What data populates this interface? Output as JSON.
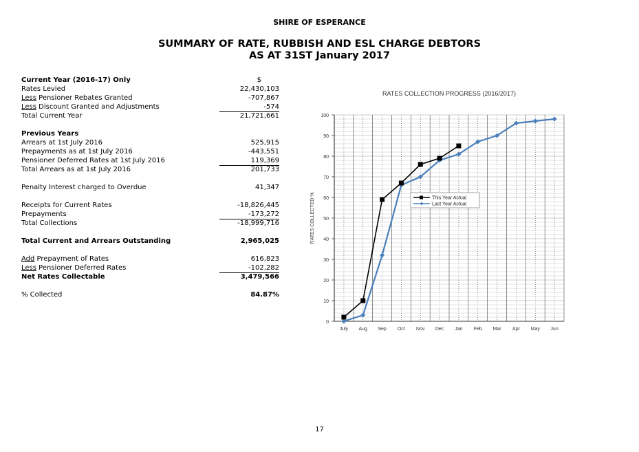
{
  "header": {
    "org": "SHIRE OF ESPERANCE",
    "title_line1": "SUMMARY OF RATE, RUBBISH AND ESL CHARGE DEBTORS",
    "title_line2": "AS AT 31ST January 2017"
  },
  "table": {
    "current_heading": "Current Year (2016-17) Only",
    "currency_symbol": "$",
    "rates_levied": {
      "label": "Rates Levied",
      "value": "22,430,103"
    },
    "pensioner_rebates": {
      "prefix": "Less",
      "label": " Pensioner Rebates Granted",
      "value": "-707,867"
    },
    "discount": {
      "prefix": "Less",
      "label": " Discount Granted and Adjustments",
      "value": "-574"
    },
    "total_current": {
      "label": "Total Current Year",
      "value": "21,721,661"
    },
    "previous_heading": "Previous Years",
    "arrears": {
      "label": "Arrears at 1st July 2016",
      "value": "525,915"
    },
    "prepayments_july": {
      "label": "Prepayments as at 1st July 2016",
      "value": "-443,551"
    },
    "pensioner_deferred": {
      "label": "Pensioner Deferred Rates at 1st July 2016",
      "value": "119,369"
    },
    "total_arrears": {
      "label": "Total Arrears as at 1st July 2016",
      "value": "201,733"
    },
    "penalty": {
      "label": "Penalty Interest charged to Overdue",
      "value": "41,347"
    },
    "receipts": {
      "label": "Receipts for Current Rates",
      "value": "-18,826,445"
    },
    "prepayments": {
      "label": "Prepayments",
      "value": "-173,272"
    },
    "total_collections": {
      "label": "Total Collections",
      "value": "-18,999,716"
    },
    "outstanding": {
      "label": "Total Current and Arrears Outstanding",
      "value": "2,965,025"
    },
    "add_prepayment": {
      "prefix": "Add",
      "label": " Prepayment of Rates",
      "value": "616,823"
    },
    "less_deferred": {
      "prefix": "Less",
      "label": " Pensioner Deferred Rates",
      "value": "-102,282"
    },
    "net_collectable": {
      "label": "Net Rates Collectable",
      "value": "3,479,566"
    },
    "pct_collected": {
      "label": "% Collected",
      "value": "84.87%"
    }
  },
  "chart_data": {
    "type": "line",
    "title": "RATES COLLECTION PROGRESS (2016/2017)",
    "xlabel": "",
    "ylabel": "RATES COLLECTED %",
    "categories": [
      "July",
      "Aug",
      "Sep",
      "Oct",
      "Nov",
      "Dec",
      "Jan",
      "Feb",
      "Mar",
      "Apr",
      "May",
      "Jun"
    ],
    "ylim": [
      0,
      100
    ],
    "yticks": [
      0,
      10,
      20,
      30,
      40,
      50,
      60,
      70,
      80,
      90,
      100
    ],
    "series": [
      {
        "name": "This Year Actual",
        "color": "#000000",
        "marker": "square",
        "values": [
          2,
          10,
          59,
          67,
          76,
          79,
          85,
          null,
          null,
          null,
          null,
          null
        ]
      },
      {
        "name": "Last Year Actual",
        "color": "#4a7ebb",
        "marker": "diamond",
        "values": [
          0,
          3,
          32,
          66,
          70,
          78,
          81,
          87,
          90,
          96,
          97,
          98
        ]
      }
    ],
    "legend_position": "center-right",
    "grid": true
  },
  "footer": {
    "page_number": "17"
  }
}
